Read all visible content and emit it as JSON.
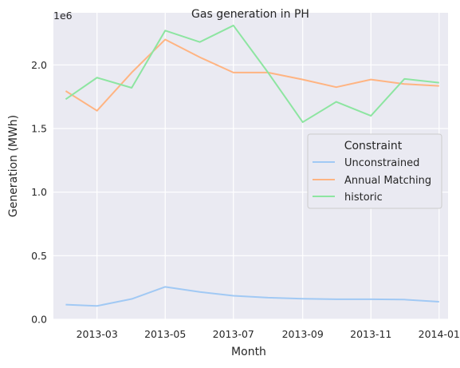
{
  "chart_data": {
    "type": "line",
    "title": "Gas generation in PH",
    "xlabel": "Month",
    "ylabel": "Generation (MWh)",
    "y_offset_label": "1e6",
    "y_multiplier": 1000000,
    "ylim": [
      0,
      2410000
    ],
    "xlim": [
      "2013-01-21",
      "2014-01-09"
    ],
    "x_tick_labels": [
      "2013-03",
      "2013-05",
      "2013-07",
      "2013-09",
      "2013-11",
      "2014-01"
    ],
    "y_tick_labels": [
      "0.0",
      "0.5",
      "1.0",
      "1.5",
      "2.0"
    ],
    "grid": true,
    "background": "#eaeaf2",
    "legend": {
      "title": "Constraint",
      "position": "center-right"
    },
    "x": [
      "2013-02-01",
      "2013-03-01",
      "2013-04-01",
      "2013-05-01",
      "2013-06-01",
      "2013-07-01",
      "2013-08-01",
      "2013-09-01",
      "2013-10-01",
      "2013-11-01",
      "2013-12-01",
      "2014-01-01"
    ],
    "series": [
      {
        "name": "Unconstrained",
        "color": "#a1c9f4",
        "values": [
          115000,
          105000,
          160000,
          255000,
          215000,
          185000,
          170000,
          162000,
          158000,
          158000,
          155000,
          138000
        ]
      },
      {
        "name": "Annual Matching",
        "color": "#ffb482",
        "values": [
          1795000,
          1640000,
          1940000,
          2200000,
          2060000,
          1940000,
          1940000,
          1885000,
          1825000,
          1885000,
          1850000,
          1835000
        ]
      },
      {
        "name": "historic",
        "color": "#8de5a1",
        "values": [
          1730000,
          1900000,
          1820000,
          2270000,
          2180000,
          2310000,
          1940000,
          1550000,
          1710000,
          1600000,
          1890000,
          1860000
        ]
      }
    ]
  }
}
